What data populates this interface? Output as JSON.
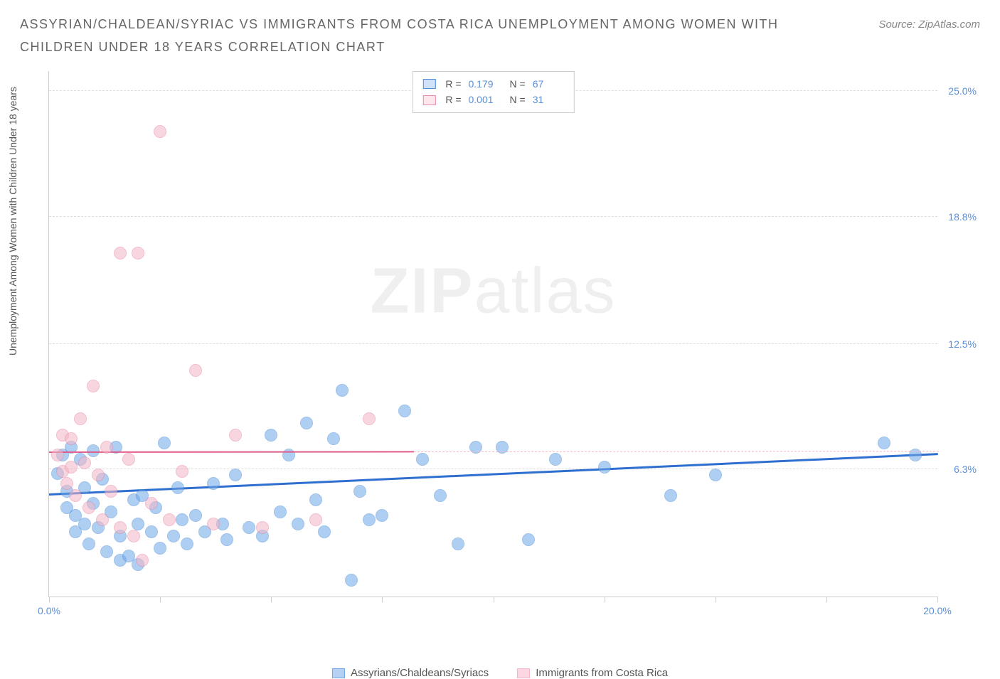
{
  "header": {
    "title": "ASSYRIAN/CHALDEAN/SYRIAC VS IMMIGRANTS FROM COSTA RICA UNEMPLOYMENT AMONG WOMEN WITH CHILDREN UNDER 18 YEARS CORRELATION CHART",
    "source": "Source: ZipAtlas.com"
  },
  "watermark": {
    "bold": "ZIP",
    "light": "atlas"
  },
  "chart": {
    "type": "scatter",
    "y_axis_label": "Unemployment Among Women with Children Under 18 years",
    "background_color": "#ffffff",
    "grid_color": "#dddddd",
    "axis_color": "#cccccc",
    "tick_label_color": "#5b8fd6",
    "xlim": [
      0,
      20
    ],
    "ylim": [
      0,
      26
    ],
    "x_ticks": [
      0,
      2.5,
      5,
      7.5,
      10,
      12.5,
      15,
      17.5,
      20
    ],
    "x_tick_labels": {
      "0": "0.0%",
      "20": "20.0%"
    },
    "y_ticks": [
      {
        "v": 6.3,
        "label": "6.3%"
      },
      {
        "v": 12.5,
        "label": "12.5%"
      },
      {
        "v": 18.8,
        "label": "18.8%"
      },
      {
        "v": 25.0,
        "label": "25.0%"
      }
    ],
    "marker_radius": 9,
    "marker_opacity": 0.55,
    "series": [
      {
        "name": "Assyrians/Chaldeans/Syriacs",
        "color": "#6fa8e8",
        "border": "#4d8fd9",
        "R": "0.179",
        "N": "67",
        "trend": {
          "x1": 0,
          "y1": 5.0,
          "x2": 20,
          "y2": 7.0,
          "solid_until_x": 20,
          "line_color": "#2f6fcf",
          "line_width": 2.5
        },
        "points": [
          [
            0.2,
            6.1
          ],
          [
            0.3,
            7.0
          ],
          [
            0.4,
            5.2
          ],
          [
            0.4,
            4.4
          ],
          [
            0.5,
            7.4
          ],
          [
            0.6,
            3.2
          ],
          [
            0.6,
            4.0
          ],
          [
            0.7,
            6.8
          ],
          [
            0.8,
            3.6
          ],
          [
            0.8,
            5.4
          ],
          [
            0.9,
            2.6
          ],
          [
            1.0,
            4.6
          ],
          [
            1.0,
            7.2
          ],
          [
            1.1,
            3.4
          ],
          [
            1.2,
            5.8
          ],
          [
            1.3,
            2.2
          ],
          [
            1.4,
            4.2
          ],
          [
            1.5,
            7.4
          ],
          [
            1.6,
            3.0
          ],
          [
            1.6,
            1.8
          ],
          [
            1.8,
            2.0
          ],
          [
            1.9,
            4.8
          ],
          [
            2.0,
            3.6
          ],
          [
            2.0,
            1.6
          ],
          [
            2.1,
            5.0
          ],
          [
            2.3,
            3.2
          ],
          [
            2.4,
            4.4
          ],
          [
            2.5,
            2.4
          ],
          [
            2.6,
            7.6
          ],
          [
            2.8,
            3.0
          ],
          [
            2.9,
            5.4
          ],
          [
            3.0,
            3.8
          ],
          [
            3.1,
            2.6
          ],
          [
            3.3,
            4.0
          ],
          [
            3.5,
            3.2
          ],
          [
            3.7,
            5.6
          ],
          [
            3.9,
            3.6
          ],
          [
            4.0,
            2.8
          ],
          [
            4.2,
            6.0
          ],
          [
            4.5,
            3.4
          ],
          [
            4.8,
            3.0
          ],
          [
            5.0,
            8.0
          ],
          [
            5.2,
            4.2
          ],
          [
            5.4,
            7.0
          ],
          [
            5.6,
            3.6
          ],
          [
            5.8,
            8.6
          ],
          [
            6.0,
            4.8
          ],
          [
            6.2,
            3.2
          ],
          [
            6.4,
            7.8
          ],
          [
            6.6,
            10.2
          ],
          [
            6.8,
            0.8
          ],
          [
            7.0,
            5.2
          ],
          [
            7.2,
            3.8
          ],
          [
            7.5,
            4.0
          ],
          [
            8.0,
            9.2
          ],
          [
            8.4,
            6.8
          ],
          [
            8.8,
            5.0
          ],
          [
            9.2,
            2.6
          ],
          [
            9.6,
            7.4
          ],
          [
            10.2,
            7.4
          ],
          [
            10.8,
            2.8
          ],
          [
            11.4,
            6.8
          ],
          [
            12.5,
            6.4
          ],
          [
            14.0,
            5.0
          ],
          [
            15.0,
            6.0
          ],
          [
            18.8,
            7.6
          ],
          [
            19.5,
            7.0
          ]
        ]
      },
      {
        "name": "Immigrants from Costa Rica",
        "color": "#f4b6c6",
        "border": "#e88aa6",
        "R": "0.001",
        "N": "31",
        "trend": {
          "x1": 0,
          "y1": 7.1,
          "x2": 20,
          "y2": 7.15,
          "solid_until_x": 8.2,
          "line_color": "#e05a8a",
          "line_width": 1.8,
          "dash_color": "#f4b6c6"
        },
        "points": [
          [
            0.2,
            7.0
          ],
          [
            0.3,
            6.2
          ],
          [
            0.3,
            8.0
          ],
          [
            0.4,
            5.6
          ],
          [
            0.5,
            7.8
          ],
          [
            0.5,
            6.4
          ],
          [
            0.6,
            5.0
          ],
          [
            0.7,
            8.8
          ],
          [
            0.8,
            6.6
          ],
          [
            0.9,
            4.4
          ],
          [
            1.0,
            10.4
          ],
          [
            1.1,
            6.0
          ],
          [
            1.2,
            3.8
          ],
          [
            1.3,
            7.4
          ],
          [
            1.4,
            5.2
          ],
          [
            1.6,
            3.4
          ],
          [
            1.6,
            17.0
          ],
          [
            1.8,
            6.8
          ],
          [
            1.9,
            3.0
          ],
          [
            2.0,
            17.0
          ],
          [
            2.1,
            1.8
          ],
          [
            2.3,
            4.6
          ],
          [
            2.5,
            23.0
          ],
          [
            2.7,
            3.8
          ],
          [
            3.0,
            6.2
          ],
          [
            3.3,
            11.2
          ],
          [
            3.7,
            3.6
          ],
          [
            4.2,
            8.0
          ],
          [
            4.8,
            3.4
          ],
          [
            6.0,
            3.8
          ],
          [
            7.2,
            8.8
          ]
        ]
      }
    ],
    "bottom_legend": [
      {
        "swatch_fill": "#b5d0f2",
        "swatch_border": "#6fa8e8",
        "label": "Assyrians/Chaldeans/Syriacs"
      },
      {
        "swatch_fill": "#fcd6e1",
        "swatch_border": "#f4b6c6",
        "label": "Immigrants from Costa Rica"
      }
    ]
  }
}
